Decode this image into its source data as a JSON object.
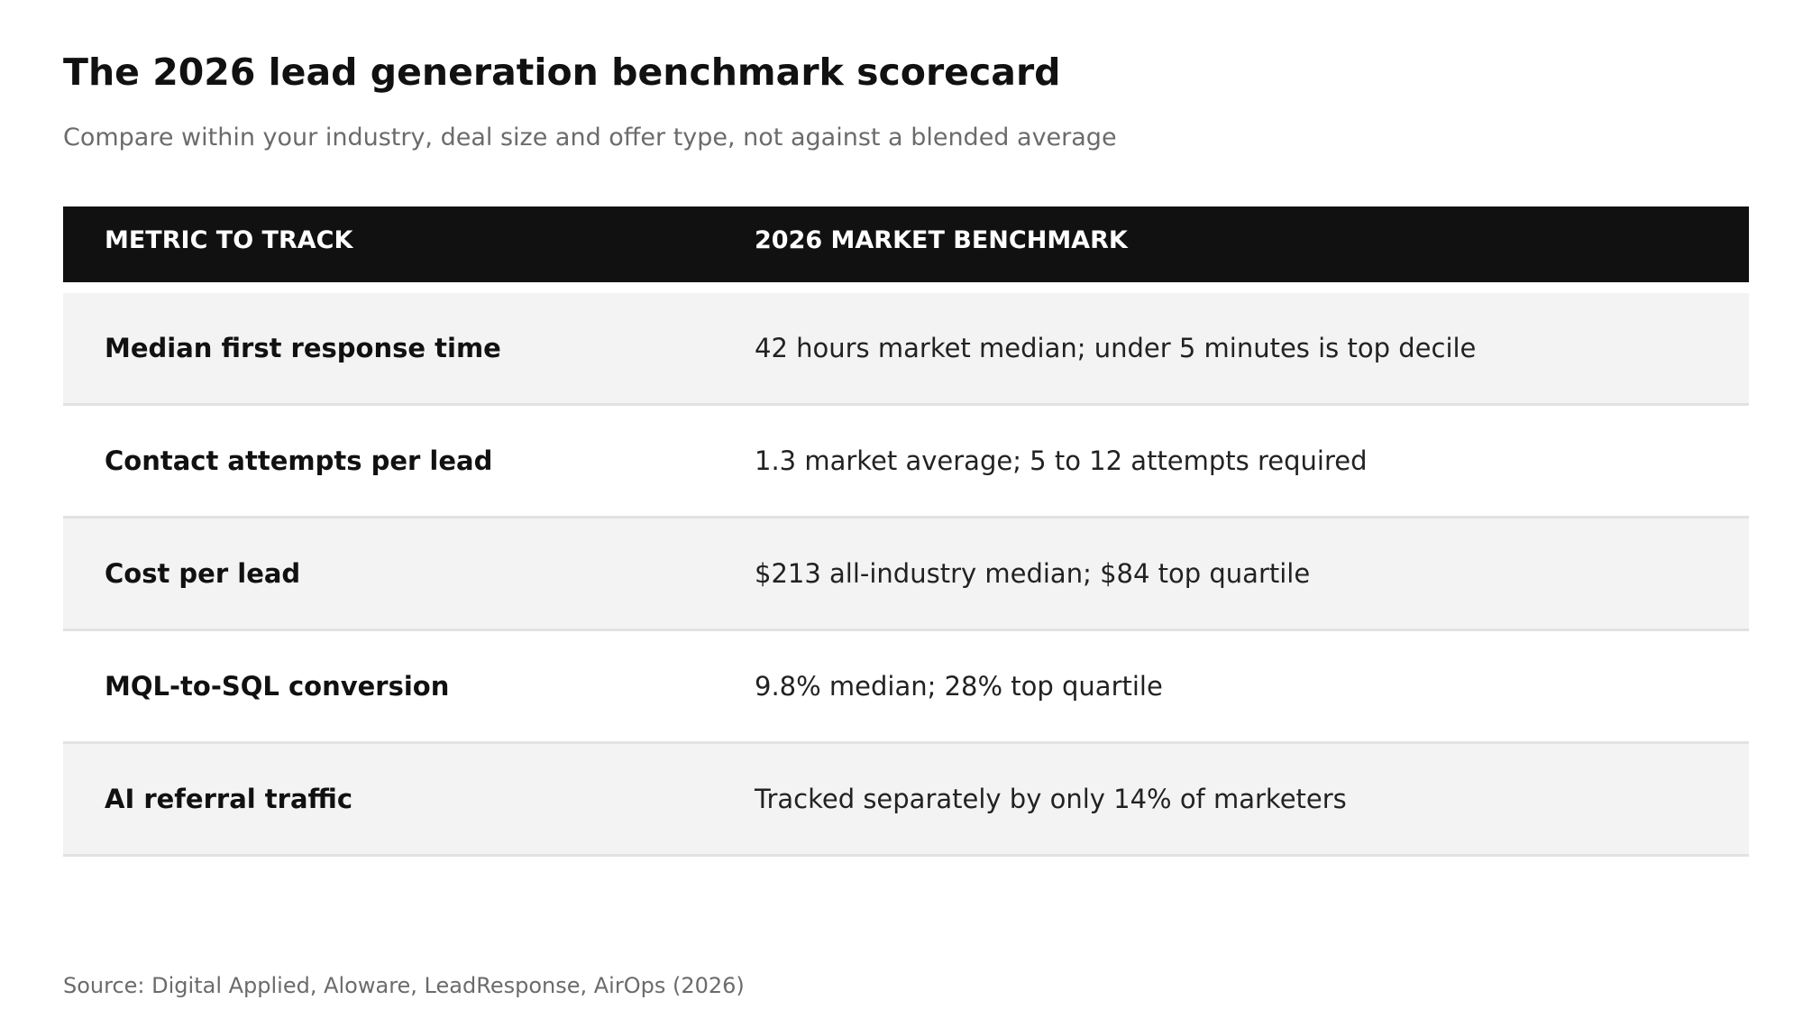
{
  "title": "The 2026 lead generation benchmark scorecard",
  "subtitle": "Compare within your industry, deal size and offer type, not against a blended average",
  "table": {
    "headers": [
      "METRIC TO TRACK",
      "2026 MARKET BENCHMARK"
    ],
    "rows": [
      {
        "metric": "Median first response time",
        "benchmark": "42 hours market median; under 5 minutes is top decile"
      },
      {
        "metric": "Contact attempts per lead",
        "benchmark": "1.3 market average; 5 to 12 attempts required"
      },
      {
        "metric": "Cost per lead",
        "benchmark": "$213 all-industry median; $84 top quartile"
      },
      {
        "metric": "MQL-to-SQL conversion",
        "benchmark": "9.8% median; 28% top quartile"
      },
      {
        "metric": "AI referral traffic",
        "benchmark": "Tracked separately by only 14% of marketers"
      }
    ]
  },
  "source": "Source: Digital Applied, Aloware, LeadResponse, AirOps (2026)",
  "colors": {
    "header_background": "#111111",
    "header_text": "#ffffff",
    "shaded_row": "#f3f3f3",
    "divider": "#e2e2e2",
    "muted_text": "#6b6b6b"
  }
}
